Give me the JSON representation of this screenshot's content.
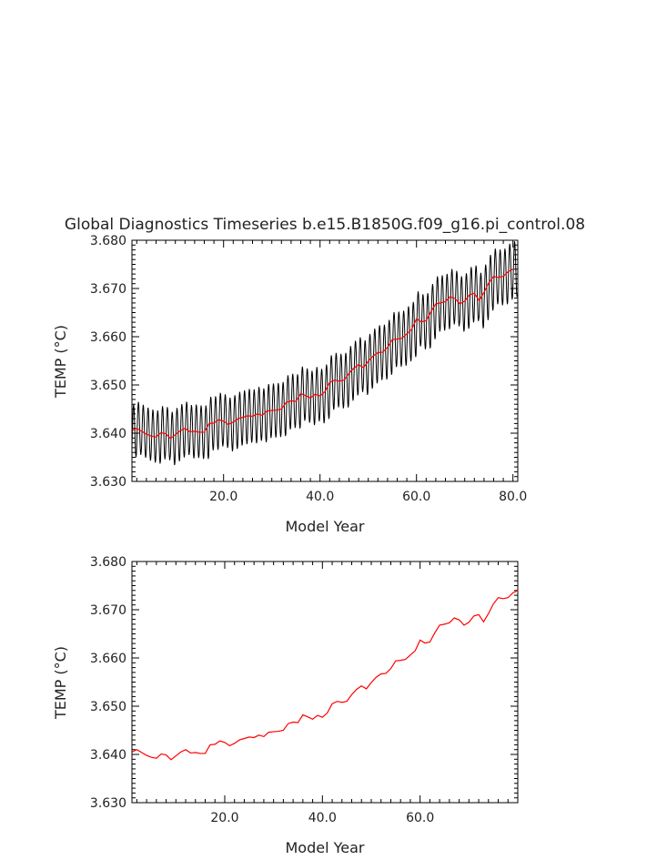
{
  "chart_data": [
    {
      "type": "line",
      "title": "Global Diagnostics Timeseries b.e15.B1850G.f09_g16.pi_control.08",
      "xlabel": "Model Year",
      "ylabel": "TEMP (°C)",
      "xlim": [
        1,
        81
      ],
      "ylim": [
        3.63,
        3.68
      ],
      "xticks": [
        "20.0",
        "40.0",
        "60.0",
        "80.0"
      ],
      "yticks": [
        "3.630",
        "3.640",
        "3.650",
        "3.660",
        "3.670",
        "3.680"
      ],
      "grid": false,
      "series": [
        {
          "color": "#000000",
          "description_values": "monthly, seasonal cycle about annual mean",
          "monthly_amplitude_start": 0.0055,
          "monthly_amplitude_end": 0.0058,
          "cycles_per_year": 1
        },
        {
          "color": "#ff0000",
          "x": [
            1,
            2,
            3,
            4,
            5,
            6,
            7,
            8,
            9,
            10,
            11,
            12,
            13,
            14,
            15,
            16,
            17,
            18,
            19,
            20,
            21,
            22,
            23,
            24,
            25,
            26,
            27,
            28,
            29,
            30,
            31,
            32,
            33,
            34,
            35,
            36,
            37,
            38,
            39,
            40,
            41,
            42,
            43,
            44,
            45,
            46,
            47,
            48,
            49,
            50,
            51,
            52,
            53,
            54,
            55,
            56,
            57,
            58,
            59,
            60,
            61,
            62,
            63,
            64,
            65,
            66,
            67,
            68,
            69,
            70,
            71,
            72,
            73,
            74,
            75,
            76,
            77,
            78,
            79,
            80
          ],
          "values": [
            3.6405,
            3.641,
            3.6404,
            3.6398,
            3.6394,
            3.6392,
            3.6401,
            3.6399,
            3.6389,
            3.6397,
            3.6405,
            3.641,
            3.6403,
            3.6404,
            3.6402,
            3.6402,
            3.642,
            3.6421,
            3.6428,
            3.6425,
            3.6418,
            3.6423,
            3.643,
            3.6433,
            3.6436,
            3.6435,
            3.644,
            3.6437,
            3.6446,
            3.6447,
            3.6448,
            3.645,
            3.6464,
            3.6467,
            3.6466,
            3.6482,
            3.6478,
            3.6473,
            3.6481,
            3.6477,
            3.6486,
            3.6505,
            3.651,
            3.6508,
            3.651,
            3.6524,
            3.6535,
            3.6542,
            3.6536,
            3.6549,
            3.656,
            3.6567,
            3.6568,
            3.6578,
            3.6594,
            3.6595,
            3.6597,
            3.6606,
            3.6615,
            3.6637,
            3.6631,
            3.6633,
            3.6652,
            3.6668,
            3.667,
            3.6673,
            3.6683,
            3.6679,
            3.6668,
            3.6674,
            3.6687,
            3.669,
            3.6675,
            3.6692,
            3.6712,
            3.6725,
            3.6723,
            3.6725,
            3.6735,
            3.674
          ]
        }
      ]
    },
    {
      "type": "line",
      "title": "",
      "xlabel": "Model Year",
      "ylabel": "TEMP (°C)",
      "xlim": [
        1,
        80
      ],
      "ylim": [
        3.63,
        3.68
      ],
      "xticks": [
        "20.0",
        "40.0",
        "60.0"
      ],
      "yticks": [
        "3.630",
        "3.640",
        "3.650",
        "3.660",
        "3.670",
        "3.680"
      ],
      "grid": false,
      "series": [
        {
          "color": "#ff0000",
          "x": [
            1,
            2,
            3,
            4,
            5,
            6,
            7,
            8,
            9,
            10,
            11,
            12,
            13,
            14,
            15,
            16,
            17,
            18,
            19,
            20,
            21,
            22,
            23,
            24,
            25,
            26,
            27,
            28,
            29,
            30,
            31,
            32,
            33,
            34,
            35,
            36,
            37,
            38,
            39,
            40,
            41,
            42,
            43,
            44,
            45,
            46,
            47,
            48,
            49,
            50,
            51,
            52,
            53,
            54,
            55,
            56,
            57,
            58,
            59,
            60,
            61,
            62,
            63,
            64,
            65,
            66,
            67,
            68,
            69,
            70,
            71,
            72,
            73,
            74,
            75,
            76,
            77,
            78,
            79,
            80
          ],
          "values": [
            3.6405,
            3.641,
            3.6404,
            3.6398,
            3.6394,
            3.6392,
            3.6401,
            3.6399,
            3.6389,
            3.6397,
            3.6405,
            3.641,
            3.6403,
            3.6404,
            3.6402,
            3.6402,
            3.642,
            3.6421,
            3.6428,
            3.6425,
            3.6418,
            3.6423,
            3.643,
            3.6433,
            3.6436,
            3.6435,
            3.644,
            3.6437,
            3.6446,
            3.6447,
            3.6448,
            3.645,
            3.6464,
            3.6467,
            3.6466,
            3.6482,
            3.6478,
            3.6473,
            3.6481,
            3.6477,
            3.6486,
            3.6505,
            3.651,
            3.6508,
            3.651,
            3.6524,
            3.6535,
            3.6542,
            3.6536,
            3.6549,
            3.656,
            3.6567,
            3.6568,
            3.6578,
            3.6594,
            3.6595,
            3.6597,
            3.6606,
            3.6615,
            3.6637,
            3.6631,
            3.6633,
            3.6652,
            3.6668,
            3.667,
            3.6673,
            3.6683,
            3.6679,
            3.6668,
            3.6674,
            3.6687,
            3.669,
            3.6675,
            3.6692,
            3.6712,
            3.6725,
            3.6723,
            3.6725,
            3.6735,
            3.674
          ]
        }
      ]
    }
  ]
}
